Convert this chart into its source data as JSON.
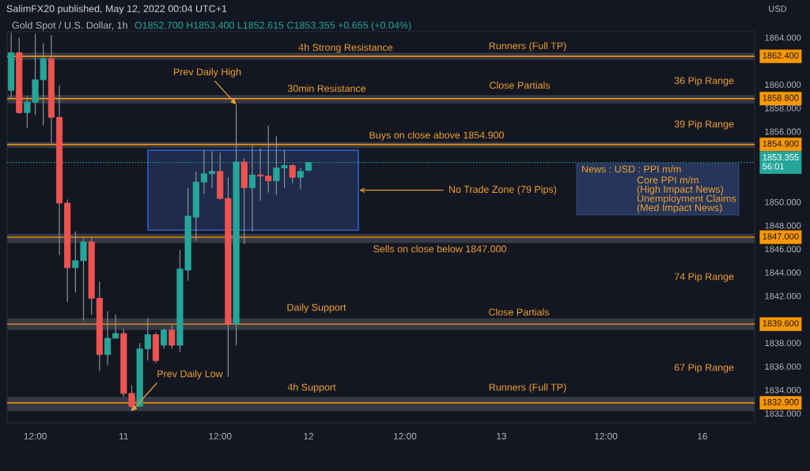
{
  "chart_data": {
    "type": "candlestick",
    "title": "Gold Spot / U.S. Dollar, 1h",
    "ylabel": "USD",
    "categories": [
      null,
      null,
      null,
      "12:00",
      null,
      null,
      null,
      null,
      null,
      null,
      null,
      null,
      null,
      null,
      "11",
      null,
      null,
      null,
      null,
      null,
      null,
      null,
      null,
      null,
      null,
      null,
      "12:00",
      null,
      null,
      null,
      null,
      null,
      null,
      null,
      null,
      null,
      null,
      "12",
      null,
      null,
      null,
      null,
      null,
      null,
      null,
      null,
      null,
      null,
      null,
      "12:00",
      null,
      null,
      null,
      null,
      null,
      null,
      null,
      null,
      null,
      null,
      null,
      "13",
      null,
      null,
      null,
      null,
      null,
      null,
      null,
      null,
      null,
      null,
      null,
      null,
      "12:00",
      null,
      null,
      null,
      null,
      null,
      null,
      null,
      null,
      null,
      null,
      null,
      "16",
      null,
      null,
      null,
      null,
      null,
      null
    ],
    "ohlc": [
      [
        1859.5,
        1864.4,
        1858.8,
        1862.7
      ],
      [
        1862.7,
        1864.0,
        1857.5,
        1857.6
      ],
      [
        1857.6,
        1859.0,
        1856.3,
        1858.5
      ],
      [
        1858.5,
        1864.3,
        1857.4,
        1860.4
      ],
      [
        1860.4,
        1863.5,
        1856.5,
        1862.2
      ],
      [
        1862.2,
        1864.2,
        1855.0,
        1857.2
      ],
      [
        1857.2,
        1859.9,
        1845.5,
        1849.9
      ],
      [
        1849.9,
        1850.2,
        1841.5,
        1844.4
      ],
      [
        1844.4,
        1847.5,
        1842.3,
        1845.0
      ],
      [
        1845.0,
        1846.9,
        1839.9,
        1846.6
      ],
      [
        1846.6,
        1846.9,
        1840.4,
        1841.8
      ],
      [
        1841.8,
        1843.2,
        1835.6,
        1837.0
      ],
      [
        1837.0,
        1840.7,
        1836.1,
        1838.4
      ],
      [
        1838.4,
        1840.4,
        1838.4,
        1838.8
      ],
      [
        1838.8,
        1839.2,
        1833.4,
        1833.7
      ],
      [
        1833.7,
        1834.4,
        1832.2,
        1832.6
      ],
      [
        1832.6,
        1838.0,
        1832.6,
        1837.5
      ],
      [
        1837.5,
        1840.1,
        1836.5,
        1838.7
      ],
      [
        1838.7,
        1838.9,
        1836.3,
        1836.5
      ],
      [
        1837.8,
        1839.2,
        1837.5,
        1839.1
      ],
      [
        1839.1,
        1839.6,
        1837.5,
        1837.8
      ],
      [
        1837.8,
        1845.9,
        1837.2,
        1844.3
      ],
      [
        1844.2,
        1851.2,
        1843.3,
        1848.8
      ],
      [
        1848.7,
        1852.6,
        1846.7,
        1851.7
      ],
      [
        1851.7,
        1854.4,
        1850.7,
        1852.4
      ],
      [
        1852.4,
        1854.3,
        1851.2,
        1852.6
      ],
      [
        1852.6,
        1854.2,
        1850.2,
        1850.3
      ],
      [
        1850.3,
        1852.1,
        1835.1,
        1839.6
      ],
      [
        1839.6,
        1858.3,
        1837.8,
        1853.4
      ],
      [
        1853.4,
        1853.7,
        1846.4,
        1851.2
      ],
      [
        1851.2,
        1854.8,
        1847.5,
        1852.3
      ],
      [
        1852.3,
        1854.6,
        1850.1,
        1852.2
      ],
      [
        1852.2,
        1856.5,
        1850.8,
        1851.8
      ],
      [
        1851.8,
        1855.6,
        1850.6,
        1852.9
      ],
      [
        1852.9,
        1854.4,
        1851.2,
        1853.1
      ],
      [
        1853.1,
        1853.2,
        1851.6,
        1852.1
      ],
      [
        1852.1,
        1852.9,
        1851.1,
        1852.6
      ],
      [
        1852.7,
        1853.4,
        1852.615,
        1853.355
      ],
      null,
      null,
      null,
      null,
      null,
      null,
      null,
      null,
      null,
      null,
      null,
      null,
      null,
      null,
      null,
      null,
      null,
      null,
      null,
      null,
      null,
      null,
      null,
      null,
      null,
      null,
      null,
      null,
      null,
      null,
      null,
      null,
      null,
      null,
      null,
      null,
      null,
      null,
      null,
      null,
      null,
      null,
      null,
      null,
      null,
      null,
      null,
      null,
      null,
      null,
      null,
      null,
      null,
      null,
      null
    ],
    "colors": [
      "#26a69a",
      "#ef5350",
      "#26a69a",
      "#26a69a",
      "#26a69a",
      "#ef5350",
      "#ef5350",
      "#ef5350",
      "#26a69a",
      "#26a69a",
      "#ef5350",
      "#ef5350",
      "#26a69a",
      "#26a69a",
      "#ef5350",
      "#ef5350",
      "#26a69a",
      "#26a69a",
      "#ef5350",
      "#26a69a",
      "#ef5350",
      "#26a69a",
      "#26a69a",
      "#26a69a",
      "#26a69a",
      "#26a69a",
      "#ef5350",
      "#ef5350",
      "#26a69a",
      "#ef5350",
      "#26a69a",
      "#ef5350",
      "#ef5350",
      "#26a69a",
      "#26a69a",
      "#ef5350",
      "#26a69a",
      "#26a69a",
      null,
      null,
      null,
      null,
      null,
      null,
      null,
      null,
      null,
      null,
      null,
      null,
      null,
      null,
      null,
      null,
      null,
      null,
      null,
      null,
      null,
      null,
      null,
      null,
      null,
      null,
      null,
      null,
      null,
      null,
      null,
      null,
      null,
      null,
      null,
      null,
      null,
      null,
      null,
      null,
      null,
      null,
      null,
      null,
      null,
      null,
      null,
      null,
      null,
      null,
      null,
      null,
      null,
      null,
      null
    ],
    "ylim": [
      1831.2,
      1864.5
    ],
    "yticks": [
      {
        "value": 1832,
        "label": "1832.000"
      },
      {
        "value": 1834,
        "label": "1834.000"
      },
      {
        "value": 1836,
        "label": "1836.000"
      },
      {
        "value": 1838,
        "label": "1838.000"
      },
      {
        "value": 1842,
        "label": "1842.000"
      },
      {
        "value": 1844,
        "label": "1844.000"
      },
      {
        "value": 1846,
        "label": "1846.000"
      },
      {
        "value": 1848,
        "label": "1848.000"
      },
      {
        "value": 1850,
        "label": "1850.000"
      },
      {
        "value": 1856,
        "label": "1856.000"
      },
      {
        "value": 1858,
        "label": "1858.000"
      },
      {
        "value": 1860,
        "label": "1860.000"
      },
      {
        "value": 1864,
        "label": "1864.000"
      }
    ],
    "ref_lines": [
      {
        "axis": "y",
        "value": 1862.4,
        "label": "1862.400",
        "color": "#ff9800"
      },
      {
        "axis": "y",
        "value": 1858.8,
        "label": "1858.800",
        "color": "#ff9800"
      },
      {
        "axis": "y",
        "value": 1854.9,
        "label": "1854.900",
        "color": "#ff9800"
      },
      {
        "axis": "y",
        "value": 1847.0,
        "label": "1847.000",
        "color": "#ff9800"
      },
      {
        "axis": "y",
        "value": 1839.6,
        "label": "1839.600",
        "color": "#ff9800"
      },
      {
        "axis": "y",
        "value": 1832.9,
        "label": "1832.900",
        "color": "#ff9800"
      },
      {
        "axis": "y",
        "value": 1853.355,
        "label": "1853.355\n56:01",
        "color": "#26a69a",
        "line_style": "dotted"
      }
    ],
    "bands": [
      {
        "axis": "y",
        "from": 1862.1,
        "to": 1862.7,
        "color": "#363a45"
      },
      {
        "axis": "y",
        "from": 1858.4,
        "to": 1859.1,
        "color": "#363a45"
      },
      {
        "axis": "y",
        "from": 1854.6,
        "to": 1855.1,
        "color": "#363a45"
      },
      {
        "axis": "y",
        "from": 1846.5,
        "to": 1847.3,
        "color": "#363a45"
      },
      {
        "axis": "y",
        "from": 1839.1,
        "to": 1840.1,
        "color": "#363a45"
      },
      {
        "axis": "y",
        "from": 1832.2,
        "to": 1833.4,
        "color": "#363a45"
      },
      {
        "axis": "y",
        "from": 1847.6,
        "to": 1854.4,
        "label": "No Trade Zone (79 Pips)",
        "color": "#1e2b4a"
      }
    ],
    "annotations": [
      "SalimFX20 published, May 12, 2022 00:04 UTC+1",
      "O1852.700 H1853.400 L1852.615 C1853.355 +0.655 (+0.04%)",
      "4h Strong Resistance",
      "Runners (Full TP)",
      "36 Pip Range",
      {
        "text": "Prev Daily High",
        "y": 1858.3
      },
      "30min Resistance",
      "Close Partials",
      "39 Pip Range",
      "Buys on close above 1854.900",
      "Sells on close below 1847.000",
      "74 Pip Range",
      "Daily Support",
      "Close Partials",
      "Prev Daily Low",
      "67 Pip Range",
      "4h Support",
      "Runners (Full TP)",
      "News : USD : PPI m/m\nCore PPI m/m\n(High Impact News)\nUnemployment Claims\n(Med Impact News)"
    ]
  }
}
